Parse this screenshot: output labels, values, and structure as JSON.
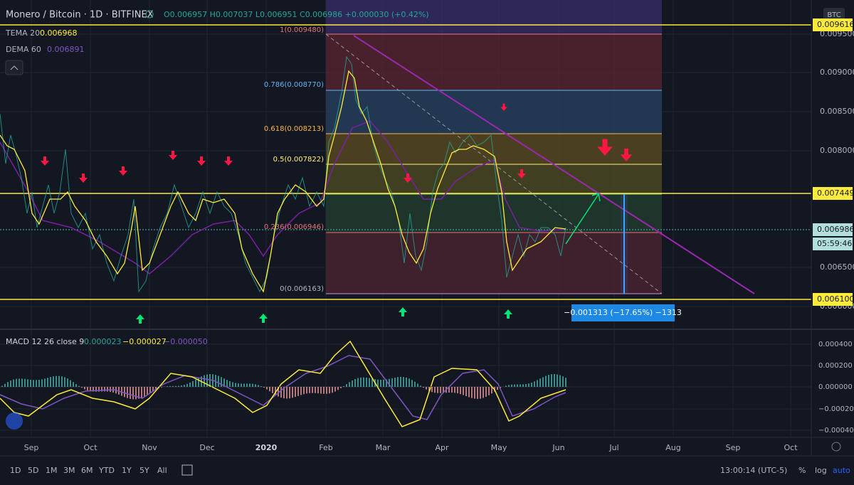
{
  "header": {
    "symbol": "Monero / Bitcoin · 1D · BITFINEX",
    "ohlc": "O0.006957 H0.007037 L0.006951 C0.006986 +0.000030 (+0.42%)"
  },
  "indicators": [
    {
      "name": "TEMA 20",
      "value": "0.006968"
    },
    {
      "name": "DEMA 60",
      "value": "0.006891"
    }
  ],
  "currency_badge": "BTC",
  "fib_levels": [
    "1(0.009480)",
    "0.786(0.008770)",
    "0.618(0.008213)",
    "0.5(0.007822)",
    "0.236(0.006946)",
    "0(0.006163)"
  ],
  "price_axis": [
    "0.009500",
    "0.009000",
    "0.008500",
    "0.008000",
    "0.006500",
    "0.006000"
  ],
  "price_markers": [
    "0.009616",
    "0.007449",
    "0.006986",
    "05:59:46",
    "0.006100"
  ],
  "measure_box": "−0.001313 (−17.65%) −1313",
  "macd": {
    "label": "MACD 12 26 close 9",
    "values": [
      "0.000023",
      "−0.000027",
      "−0.000050"
    ],
    "axis": [
      "0.000400",
      "0.000200",
      "0.000000",
      "−0.000200",
      "−0.000400"
    ]
  },
  "time_axis": [
    "Sep",
    "Oct",
    "Nov",
    "Dec",
    "2020",
    "Feb",
    "Mar",
    "Apr",
    "May",
    "Jun",
    "Jul",
    "Aug",
    "Sep",
    "Oct"
  ],
  "bottom_bar": {
    "ranges": [
      "1D",
      "5D",
      "1M",
      "3M",
      "6M",
      "YTD",
      "1Y",
      "5Y",
      "All"
    ],
    "clock": "13:00:14 (UTC-5)",
    "options": [
      "%",
      "log",
      "auto"
    ]
  }
}
